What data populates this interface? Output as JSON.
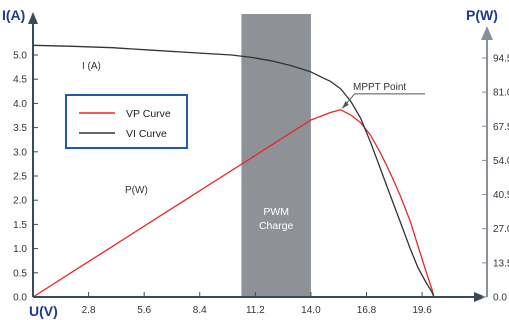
{
  "chart_data": {
    "type": "line",
    "left_axis": {
      "label": "I(A)",
      "ticks": [
        "0.0",
        "0.5",
        "1.0",
        "1.5",
        "2.0",
        "2.5",
        "3.0",
        "3.5",
        "4.0",
        "4.5",
        "5.0"
      ],
      "ylim": [
        0,
        5.5
      ]
    },
    "right_axis": {
      "label": "P(W)",
      "ticks": [
        "0.0",
        "13.5",
        "27.0",
        "40.5",
        "54.0",
        "67.5",
        "81.0",
        "94.5"
      ],
      "ylim": [
        0,
        108
      ]
    },
    "x_axis": {
      "label": "U(V)",
      "ticks": [
        "2.8",
        "5.6",
        "8.4",
        "11.2",
        "14.0",
        "16.8",
        "19.6"
      ],
      "xlim": [
        0,
        21.5
      ]
    },
    "series": [
      {
        "name": "VP Curve",
        "color": "#e8262c",
        "axis": "right",
        "x": [
          0,
          2,
          4,
          6,
          8,
          10,
          11,
          12,
          13,
          14,
          15,
          15.5,
          16,
          16.5,
          17,
          17.5,
          18,
          18.5,
          19,
          19.4,
          19.8,
          20.1,
          20.2
        ],
        "y": [
          0,
          10,
          20,
          30,
          40,
          50,
          55,
          60,
          65,
          70,
          73,
          74,
          72,
          69,
          64,
          57,
          49,
          40,
          30,
          20,
          10,
          3,
          0
        ]
      },
      {
        "name": "VI Curve",
        "color": "#333333",
        "axis": "left",
        "x": [
          0,
          2,
          4,
          6,
          8,
          10,
          11,
          12,
          13,
          14,
          14.5,
          15,
          15.5,
          16,
          16.5,
          17,
          17.5,
          18,
          18.5,
          19,
          19.4,
          19.8,
          20.1,
          20.2
        ],
        "y": [
          5.2,
          5.18,
          5.15,
          5.1,
          5.05,
          5.0,
          4.95,
          4.88,
          4.78,
          4.65,
          4.55,
          4.45,
          4.3,
          4.05,
          3.7,
          3.2,
          2.65,
          2.1,
          1.55,
          1.0,
          0.6,
          0.3,
          0.1,
          0.0
        ]
      }
    ],
    "annotations": {
      "current_label": "I (A)",
      "power_label": "P(W)",
      "mppt_label": "MPPT Point",
      "pwm_label_line1": "PWM",
      "pwm_label_line2": "Charge"
    },
    "pwm_band": {
      "x_from": 10.5,
      "x_to": 14.0,
      "color": "#8e9196"
    },
    "mppt_point": {
      "x": 15.5,
      "y_power": 74
    },
    "legend": {
      "placement": "left",
      "border_color": "#1f5aa6"
    },
    "axis_color": "#3a4a5a",
    "axis_title_color": "#1f3a8a"
  }
}
